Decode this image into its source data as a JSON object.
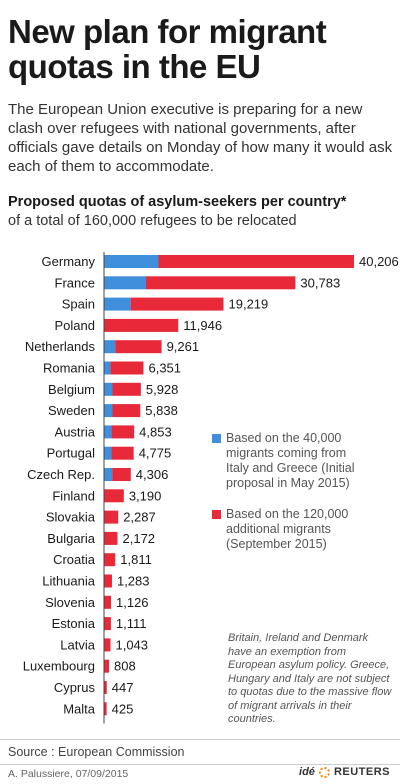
{
  "header": {
    "title": "New plan for migrant quotas in the EU",
    "intro": "The European Union executive is preparing for a new clash over refugees with national governments, after officials gave details on Monday of how many it would ask each of them to accommodate."
  },
  "chart_data": {
    "type": "bar",
    "orientation": "horizontal",
    "stacked": true,
    "title": "Proposed quotas of asylum-seekers per country*",
    "subtitle": "of a total of 160,000 refugees to be relocated",
    "categories": [
      "Germany",
      "France",
      "Spain",
      "Poland",
      "Netherlands",
      "Romania",
      "Belgium",
      "Sweden",
      "Austria",
      "Portugal",
      "Czech Rep.",
      "Finland",
      "Slovakia",
      "Bulgaria",
      "Croatia",
      "Lithuania",
      "Slovenia",
      "Estonia",
      "Latvia",
      "Luxembourg",
      "Cyprus",
      "Malta"
    ],
    "totals": [
      40206,
      30783,
      19219,
      11946,
      9261,
      6351,
      5928,
      5838,
      4853,
      4775,
      4306,
      3190,
      2287,
      2172,
      1811,
      1283,
      1126,
      1111,
      1043,
      808,
      447,
      425
    ],
    "total_labels": [
      "40,206",
      "30,783",
      "19,219",
      "11,946",
      "9,261",
      "6,351",
      "5,928",
      "5,838",
      "4,853",
      "4,775",
      "4,306",
      "3,190",
      "2,287",
      "2,172",
      "1,811",
      "1,283",
      "1,126",
      "1,111",
      "1,043",
      "808",
      "447",
      "425"
    ],
    "series": [
      {
        "name": "Based on the 40,000 migrants coming from Italy and Greece (Initial proposal in May 2015)",
        "color": "#3f8fdc",
        "values": [
          8763,
          6752,
          4288,
          0,
          1800,
          1023,
          1364,
          1369,
          1213,
          1201,
          1328,
          0,
          0,
          0,
          0,
          0,
          0,
          0,
          0,
          0,
          0,
          0
        ]
      },
      {
        "name": "Based on the 120,000 additional migrants (September 2015)",
        "color": "#e8293a",
        "values": [
          31443,
          24031,
          14931,
          11946,
          7461,
          5328,
          4564,
          4469,
          3640,
          3574,
          2978,
          3190,
          2287,
          2172,
          1811,
          1283,
          1126,
          1111,
          1043,
          808,
          447,
          425
        ]
      }
    ],
    "xlim": [
      0,
      40206
    ],
    "grid": false,
    "legend_position": "right"
  },
  "note": "Britain, Ireland and Denmark have an exemption from European asylum policy. Greece, Hungary and Italy are not subject to quotas due to the massive flow of migrant arrivals in their countries.",
  "footer": {
    "source": "Source : European Commission",
    "credit": "A. Palussiere, 07/09/2015",
    "brand_prefix": "idé",
    "brand": "REUTERS"
  },
  "colors": {
    "blue": "#3f8fdc",
    "red": "#e8293a",
    "text": "#1a1a1a"
  }
}
